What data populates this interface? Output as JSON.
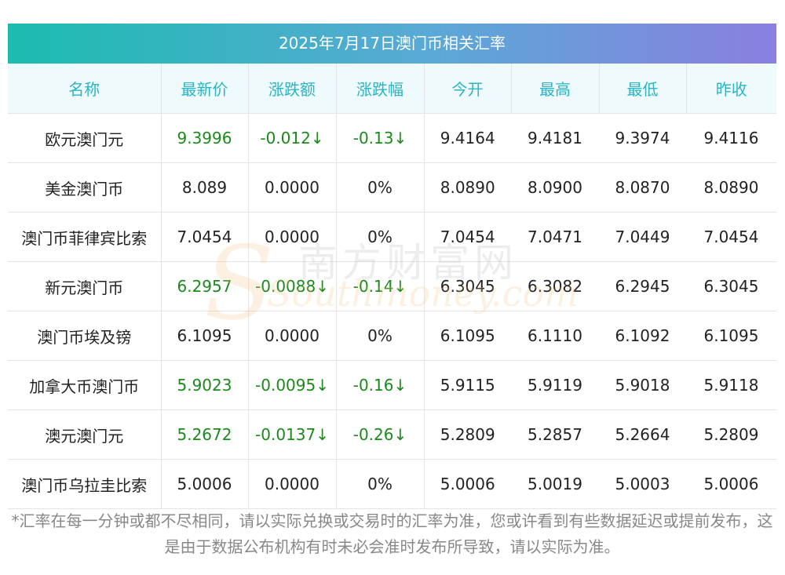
{
  "title": "2025年7月17日澳门币相关汇率",
  "headers": [
    "名称",
    "最新价",
    "涨跌额",
    "涨跌幅",
    "今开",
    "最高",
    "最低",
    "昨收"
  ],
  "rows": [
    {
      "name": "欧元澳门元",
      "price": "9.3996",
      "chg": "-0.012↓",
      "pct": "-0.13↓",
      "open": "9.4164",
      "high": "9.4181",
      "low": "9.3974",
      "prev": "9.4116",
      "down": true
    },
    {
      "name": "美金澳门币",
      "price": "8.089",
      "chg": "0.0000",
      "pct": "0%",
      "open": "8.0890",
      "high": "8.0900",
      "low": "8.0870",
      "prev": "8.0890",
      "down": false
    },
    {
      "name": "澳门币菲律宾比索",
      "price": "7.0454",
      "chg": "0.0000",
      "pct": "0%",
      "open": "7.0454",
      "high": "7.0471",
      "low": "7.0449",
      "prev": "7.0454",
      "down": false
    },
    {
      "name": "新元澳门币",
      "price": "6.2957",
      "chg": "-0.0088↓",
      "pct": "-0.14↓",
      "open": "6.3045",
      "high": "6.3082",
      "low": "6.2945",
      "prev": "6.3045",
      "down": true
    },
    {
      "name": "澳门币埃及镑",
      "price": "6.1095",
      "chg": "0.0000",
      "pct": "0%",
      "open": "6.1095",
      "high": "6.1110",
      "low": "6.1092",
      "prev": "6.1095",
      "down": false
    },
    {
      "name": "加拿大币澳门币",
      "price": "5.9023",
      "chg": "-0.0095↓",
      "pct": "-0.16↓",
      "open": "5.9115",
      "high": "5.9119",
      "low": "5.9018",
      "prev": "5.9118",
      "down": true
    },
    {
      "name": "澳元澳门元",
      "price": "5.2672",
      "chg": "-0.0137↓",
      "pct": "-0.26↓",
      "open": "5.2809",
      "high": "5.2857",
      "low": "5.2664",
      "prev": "5.2809",
      "down": true
    },
    {
      "name": "澳门币乌拉圭比索",
      "price": "5.0006",
      "chg": "0.0000",
      "pct": "0%",
      "open": "5.0006",
      "high": "5.0019",
      "low": "5.0003",
      "prev": "5.0006",
      "down": false
    }
  ],
  "footnote": "*汇率在每一分钟或都不尽相同，请以实际兑换或交易时的汇率为准，您或许看到有些数据延迟或提前发布，这是由于数据公布机构有时未必会准时发布所导致，请以实际为准。",
  "watermark": {
    "cn": "南方财富网",
    "en": "Southmoney.com"
  },
  "colors": {
    "header_text": "#2bb4c4",
    "down": "#1b8a1b",
    "title_grad_start": "#1bbcb0",
    "title_grad_end": "#8a7fe0"
  }
}
